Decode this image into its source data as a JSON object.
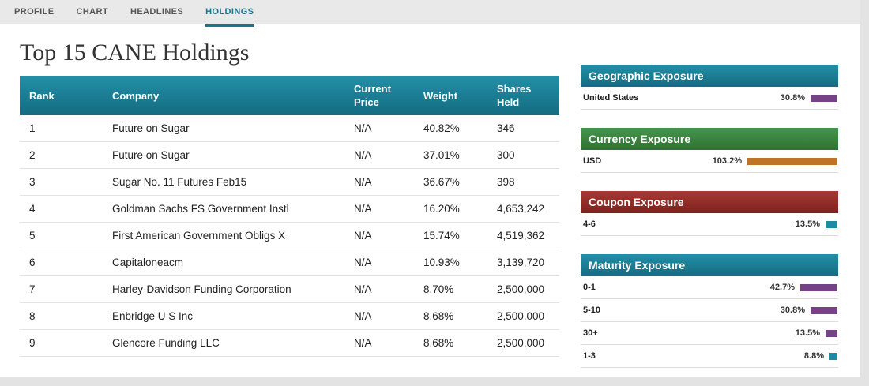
{
  "tabs": {
    "items": [
      {
        "label": "PROFILE"
      },
      {
        "label": "CHART"
      },
      {
        "label": "HEADLINES"
      },
      {
        "label": "HOLDINGS"
      }
    ],
    "active": "HOLDINGS",
    "active_color": "#19758b"
  },
  "page_title": "Top 15 CANE Holdings",
  "holdings_table": {
    "headers": [
      "Rank",
      "Company",
      "Current Price",
      "Weight",
      "Shares Held"
    ],
    "header_color": "#1d7f95",
    "rows": [
      [
        "1",
        "Future on Sugar",
        "N/A",
        "40.82%",
        "346"
      ],
      [
        "2",
        "Future on Sugar",
        "N/A",
        "37.01%",
        "300"
      ],
      [
        "3",
        "Sugar No. 11 Futures Feb15",
        "N/A",
        "36.67%",
        "398"
      ],
      [
        "4",
        "Goldman Sachs FS Government Instl",
        "N/A",
        "16.20%",
        "4,653,242"
      ],
      [
        "5",
        "First American Government Obligs X",
        "N/A",
        "15.74%",
        "4,519,362"
      ],
      [
        "6",
        "Capitaloneacm",
        "N/A",
        "10.93%",
        "3,139,720"
      ],
      [
        "7",
        "Harley-Davidson Funding Corporation",
        "N/A",
        "8.70%",
        "2,500,000"
      ],
      [
        "8",
        "Enbridge U S Inc",
        "N/A",
        "8.68%",
        "2,500,000"
      ],
      [
        "9",
        "Glencore Funding LLC",
        "N/A",
        "8.68%",
        "2,500,000"
      ]
    ]
  },
  "panels": [
    {
      "title": "Geographic Exposure",
      "accent": "#1c849b",
      "items": [
        {
          "label": "United States",
          "value": "30.8%",
          "pct": 30.8,
          "bar_color": "#764286"
        }
      ]
    },
    {
      "title": "Currency Exposure",
      "accent": "#3c8d41",
      "items": [
        {
          "label": "USD",
          "value": "103.2%",
          "pct": 103.2,
          "bar_color": "#bf7327"
        }
      ]
    },
    {
      "title": "Coupon Exposure",
      "accent": "#99302b",
      "items": [
        {
          "label": "4-6",
          "value": "13.5%",
          "pct": 13.5,
          "bar_color": "#1f8ba3"
        }
      ]
    },
    {
      "title": "Maturity Exposure",
      "accent": "#1c849b",
      "items": [
        {
          "label": "0-1",
          "value": "42.7%",
          "pct": 42.7,
          "bar_color": "#764286"
        },
        {
          "label": "5-10",
          "value": "30.8%",
          "pct": 30.8,
          "bar_color": "#764286"
        },
        {
          "label": "30+",
          "value": "13.5%",
          "pct": 13.5,
          "bar_color": "#764286"
        },
        {
          "label": "1-3",
          "value": "8.8%",
          "pct": 8.8,
          "bar_color": "#1f8ba3"
        }
      ]
    }
  ]
}
